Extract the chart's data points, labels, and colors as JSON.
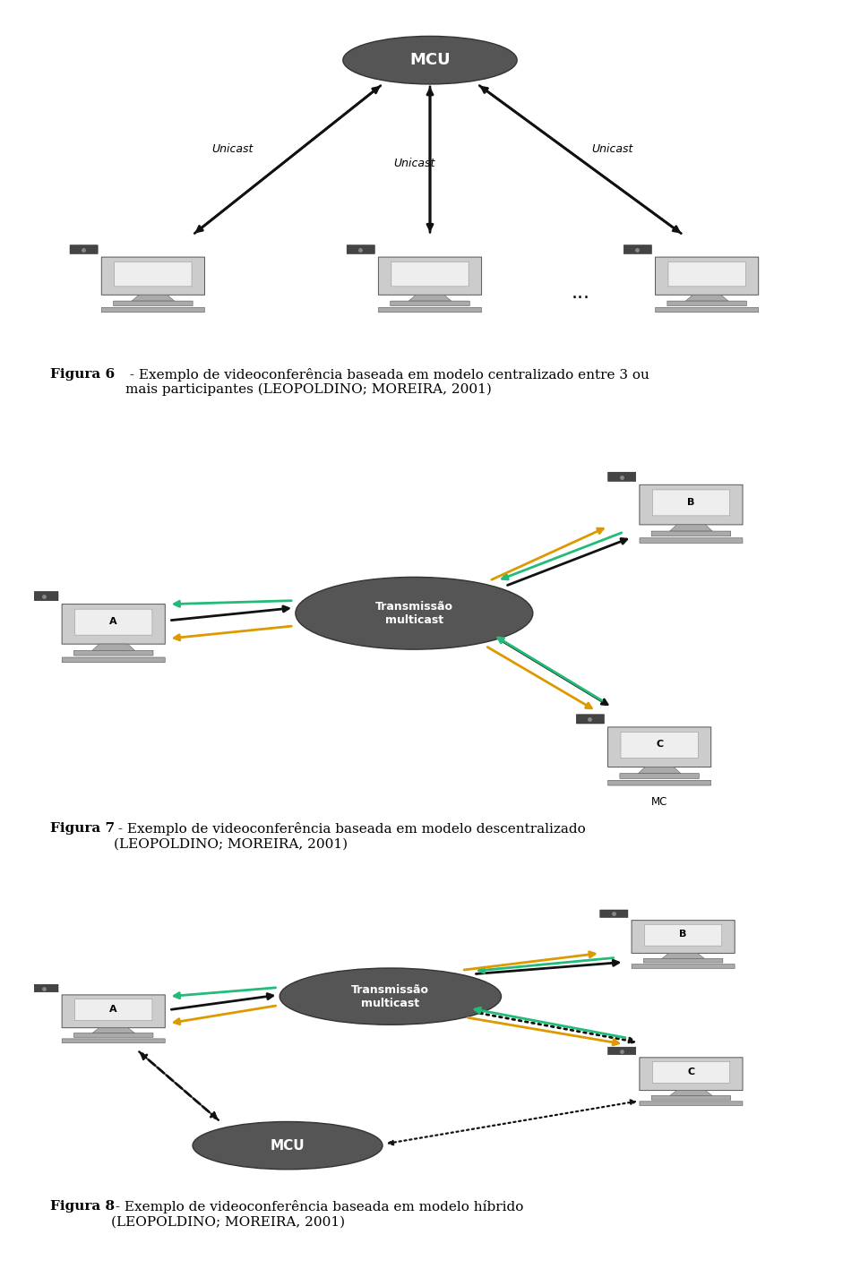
{
  "bg_color": "#ffffff",
  "fig_caption1_bold": "Figura 6",
  "fig_caption1_rest": " - Exemplo de videoconferência baseada em modelo centralizado entre 3 ou\nmais participantes (LEOPOLDINO; MOREIRA, 2001)",
  "fig_caption2_bold": "Figura 7",
  "fig_caption2_rest": " - Exemplo de videoconferência baseada em modelo descentralizado\n(LEOPOLDINO; MOREIRA, 2001)",
  "fig_caption3_bold": "Figura 8",
  "fig_caption3_rest": " - Exemplo de videoconferência baseada em modelo híbrido\n(LEOPOLDINO; MOREIRA, 2001)",
  "arrow_black": "#111111",
  "arrow_green": "#22bb77",
  "arrow_orange": "#dd9900",
  "ellipse_dark": "#555555",
  "ellipse_edge": "#333333"
}
